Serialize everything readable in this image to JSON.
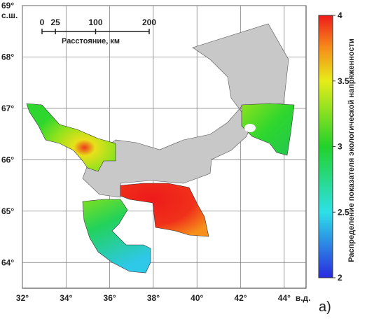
{
  "map": {
    "lon_ticks": [
      {
        "value": 32,
        "label": "32°"
      },
      {
        "value": 34,
        "label": "34°"
      },
      {
        "value": 36,
        "label": "36°"
      },
      {
        "value": 38,
        "label": "38°"
      },
      {
        "value": 40,
        "label": "40°"
      },
      {
        "value": 42,
        "label": "42°"
      },
      {
        "value": 44,
        "label": "44°"
      }
    ],
    "lon_unit": "в.д.",
    "lat_ticks": [
      {
        "value": 64,
        "label": "64°"
      },
      {
        "value": 65,
        "label": "65°"
      },
      {
        "value": 66,
        "label": "66°"
      },
      {
        "value": 67,
        "label": "67°"
      },
      {
        "value": 68,
        "label": "68°"
      },
      {
        "value": 69,
        "label": "69°"
      }
    ],
    "lat_unit": "с.ш.",
    "xlim": [
      32,
      45
    ],
    "ylim": [
      63.5,
      69
    ],
    "scale_bar": {
      "ticks": [
        0,
        25,
        100,
        200
      ],
      "label": "Расстояние, км"
    },
    "colorbar": {
      "label": "Распределение показателя экологической напряженности",
      "lim": [
        2,
        4
      ],
      "ticks": [
        2,
        2.5,
        3,
        3.5,
        4
      ]
    },
    "panel_label": "а)"
  }
}
